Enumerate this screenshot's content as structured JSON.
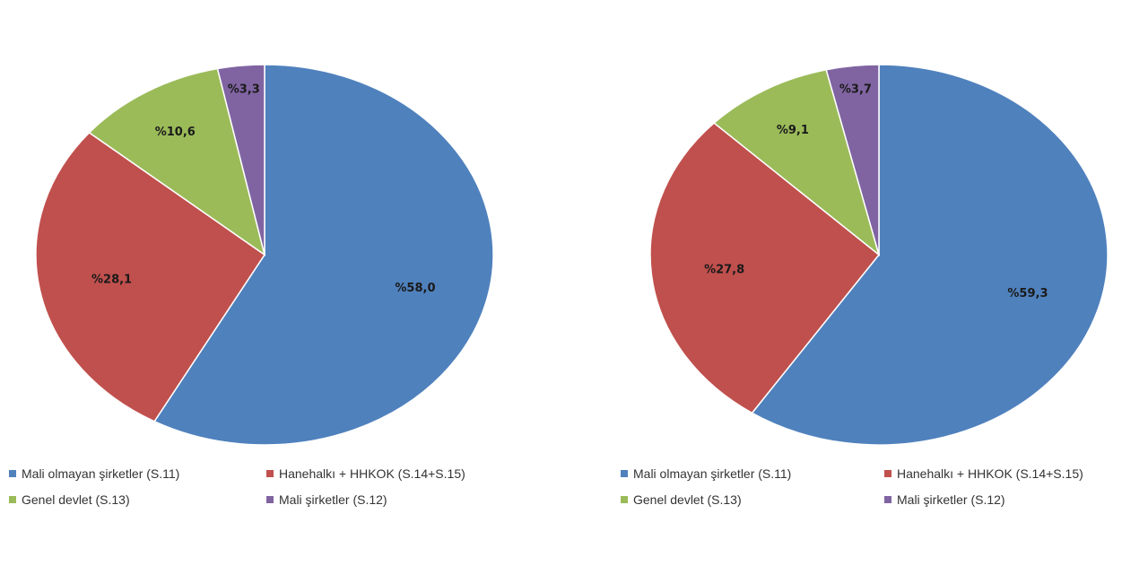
{
  "chart_data": [
    {
      "type": "pie",
      "series": [
        {
          "name": "Mali olmayan şirketler (S.11)",
          "value": 58.0,
          "label": "%58,0",
          "color": "#4f81bd"
        },
        {
          "name": "Hanehalkı + HHKOK (S.14+S.15)",
          "value": 28.1,
          "label": "%28,1",
          "color": "#c0504d"
        },
        {
          "name": "Genel devlet (S.13)",
          "value": 10.6,
          "label": "%10,6",
          "color": "#9bbb59"
        },
        {
          "name": "Mali şirketler (S.12)",
          "value": 3.3,
          "label": "%3,3",
          "color": "#8064a2"
        }
      ],
      "legend_position": "bottom"
    },
    {
      "type": "pie",
      "series": [
        {
          "name": "Mali olmayan şirketler (S.11)",
          "value": 59.3,
          "label": "%59,3",
          "color": "#4f81bd"
        },
        {
          "name": "Hanehalkı + HHKOK (S.14+S.15)",
          "value": 27.8,
          "label": "%27,8",
          "color": "#c0504d"
        },
        {
          "name": "Genel devlet (S.13)",
          "value": 9.1,
          "label": "%9,1",
          "color": "#9bbb59"
        },
        {
          "name": "Mali şirketler (S.12)",
          "value": 3.7,
          "label": "%3,7",
          "color": "#8064a2"
        }
      ],
      "legend_position": "bottom"
    }
  ]
}
